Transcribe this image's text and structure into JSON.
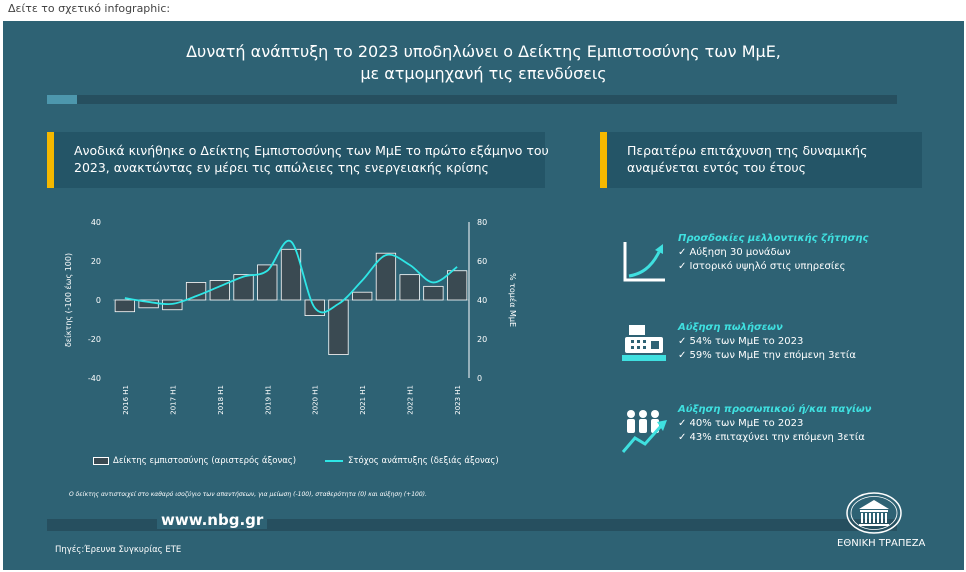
{
  "page_caption": "Δείτε το σχετικό infographic:",
  "title_line1": "Δυνατή ανάπτυξη το 2023 υποδηλώνει ο Δείκτης Εμπιστοσύνης των ΜμΕ,",
  "title_line2": "με ατμομηχανή τις επενδύσεις",
  "left_header_line1": "Ανοδικά κινήθηκε ο Δείκτης Εμπιστοσύνης των ΜμΕ το πρώτο εξάμηνο του",
  "left_header_line2": "2023, ανακτώντας εν μέρει τις απώλειες της ενεργειακής κρίσης",
  "right_header_line1": "Περαιτέρω επιτάχυνση της δυναμικής",
  "right_header_line2": "αναμένεται εντός του έτους",
  "chart_data": {
    "type": "bar",
    "title": "",
    "ylabel": "δείκτης (-100 έως 100)",
    "y2label": "% τομέα ΜμΕ",
    "ylim": [
      -40,
      40
    ],
    "y2lim": [
      0,
      80
    ],
    "yticks": [
      "40",
      "20",
      "0",
      "-20",
      "-40"
    ],
    "y2ticks": [
      "80",
      "60",
      "40",
      "20",
      "0"
    ],
    "xtick_labels": [
      "2016 H1",
      "2017 H1",
      "2018 H1",
      "2019 H1",
      "2020 H1",
      "2021 H1",
      "2022 H1",
      "2023 H1"
    ],
    "series": [
      {
        "name": "Δείκτης εμπιστοσύνης (αριστερός άξονας)",
        "kind": "bar",
        "axis": "left",
        "values": [
          -6,
          -4,
          -5,
          9,
          10,
          13,
          18,
          26,
          -8,
          -28,
          4,
          24,
          13,
          7,
          15
        ]
      },
      {
        "name": "Στόχος ανάπτυξης (δεξιάς άξονας)",
        "kind": "line",
        "axis": "right",
        "values": [
          41,
          39,
          38,
          42,
          47,
          52,
          55,
          70,
          36,
          38,
          50,
          63,
          58,
          49,
          57
        ]
      }
    ],
    "legend_placement": "bottom",
    "grid": false
  },
  "legend": {
    "bar_label": "Δείκτης εμπιστοσύνης (αριστερός άξονας)",
    "line_label": "Στόχος ανάπτυξης (δεξιάς άξονας)"
  },
  "footnote": "Ο δείκτης αντιστοιχεί στο καθαρό ισοζύγιο των απαντήσεων, για μείωση (-100), σταθερότητα (0) και αύξηση (+100).",
  "url": "www.nbg.gr",
  "source": "Πηγές:Έρευνα Συγκυρίας ΕΤΕ",
  "bank_name": "ΕΘΝΙΚΗ ΤΡΑΠΕΖΑ",
  "sections": [
    {
      "icon": "growth-chart-icon",
      "title": "Προσδοκίες μελλοντικής ζήτησης",
      "lines": [
        "✓ Αύξηση 30 μονάδων",
        "✓ Ιστορικό υψηλό στις υπηρεσίες"
      ]
    },
    {
      "icon": "cash-register-icon",
      "title": "Αύξηση πωλήσεων",
      "lines": [
        "✓ 54% των ΜμΕ το 2023",
        "✓ 59% των ΜμΕ την επόμενη 3ετία"
      ]
    },
    {
      "icon": "people-growth-icon",
      "title": "Αύξηση προσωπικού ή/και παγίων",
      "lines": [
        "✓ 40% των ΜμΕ το 2023",
        "✓ 43% επιταχύνει την επόμενη 3ετία"
      ]
    }
  ],
  "colors": {
    "panel": "#2e6274",
    "header_box": "#245567",
    "accent_yellow": "#f5b800",
    "line_cyan": "#2ee6e6",
    "section_title": "#3fe0e0"
  }
}
